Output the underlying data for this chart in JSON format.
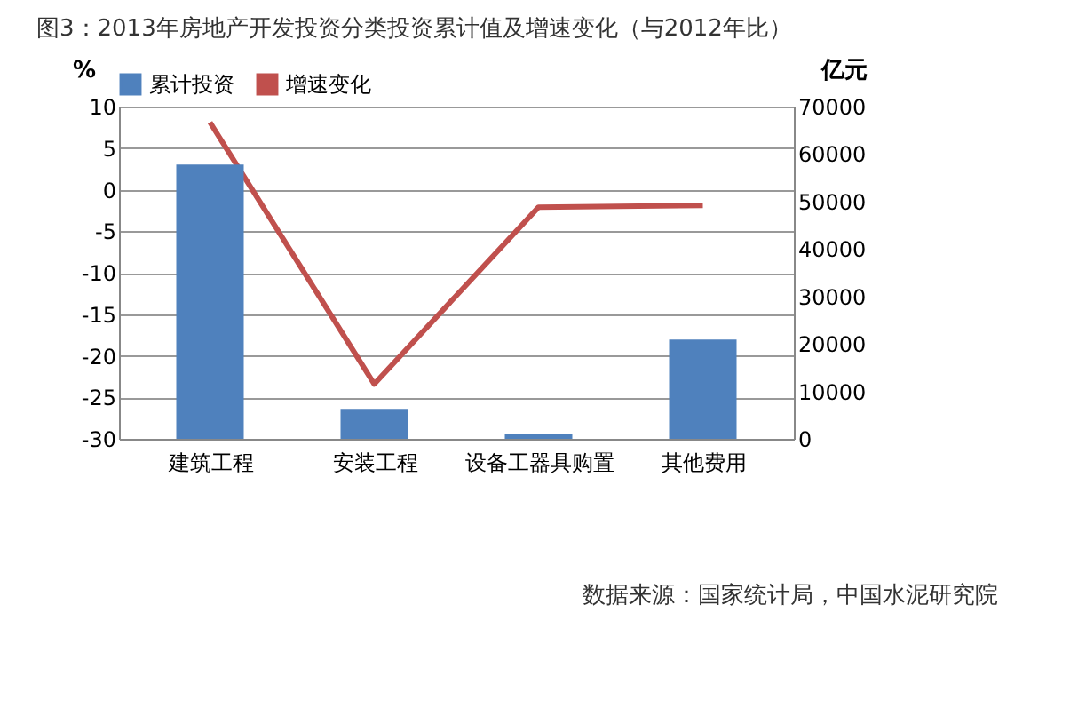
{
  "chart_data": {
    "type": "bar",
    "title": "图3：2013年房地产开发投资分类投资累计值及增速变化（与2012年比）",
    "categories": [
      "建筑工程",
      "安装工程",
      "设备工器具购置",
      "其他费用"
    ],
    "series": [
      {
        "name": "累计投资",
        "axis": "y2",
        "color": "#4f81bd",
        "values": [
          57800,
          6300,
          1100,
          20900
        ]
      },
      {
        "name": "增速变化",
        "type": "line",
        "axis": "y",
        "color": "#c0504d",
        "values": [
          8.1,
          -23.4,
          -2.1,
          -1.9
        ]
      }
    ],
    "ylabel": "%",
    "y2label": "亿元",
    "ylim": [
      -30,
      10
    ],
    "yticks": [
      -30,
      -25,
      -20,
      -15,
      -10,
      -5,
      0,
      5,
      10
    ],
    "y2lim": [
      0,
      70000
    ],
    "y2ticks": [
      0,
      10000,
      20000,
      30000,
      40000,
      50000,
      60000,
      70000
    ],
    "grid": "y",
    "legend": "top",
    "marker": "none",
    "annotations": [
      "数据来源：国家统计局，中国水泥研究院"
    ]
  }
}
